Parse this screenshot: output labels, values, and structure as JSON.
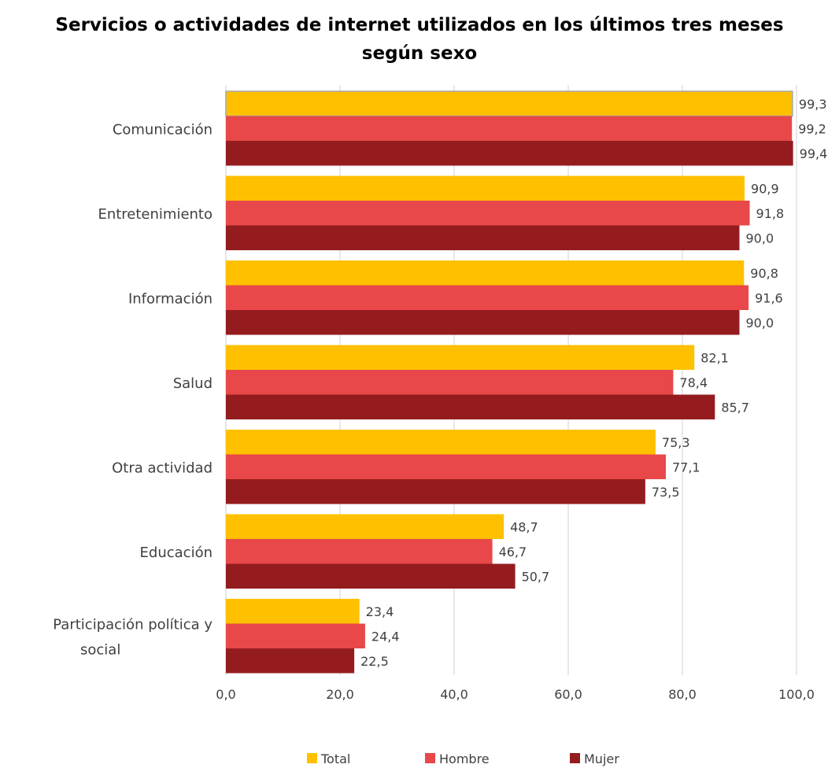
{
  "chart_data": {
    "type": "bar",
    "orientation": "horizontal",
    "title_lines": [
      "Servicios o actividades de internet utilizados en los últimos tres meses",
      "según sexo"
    ],
    "categories": [
      [
        "Comunicación"
      ],
      [
        "Entretenimiento"
      ],
      [
        "Información"
      ],
      [
        "Salud"
      ],
      [
        "Otra actividad"
      ],
      [
        "Educación"
      ],
      [
        "Participación política y",
        "social"
      ]
    ],
    "series": [
      {
        "name": "Total",
        "color": "#FFC000",
        "values": [
          99.3,
          90.9,
          90.8,
          82.1,
          75.3,
          48.7,
          23.4
        ],
        "labels": [
          "99,3",
          "90,9",
          "90,8",
          "82,1",
          "75,3",
          "48,7",
          "23,4"
        ]
      },
      {
        "name": "Hombre",
        "color": "#E84849",
        "values": [
          99.2,
          91.8,
          91.6,
          78.4,
          77.1,
          46.7,
          24.4
        ],
        "labels": [
          "99,2",
          "91,8",
          "91,6",
          "78,4",
          "77,1",
          "46,7",
          "24,4"
        ]
      },
      {
        "name": "Mujer",
        "color": "#941C1F",
        "values": [
          99.4,
          90.0,
          90.0,
          85.7,
          73.5,
          50.7,
          22.5
        ],
        "labels": [
          "99,4",
          "90,0",
          "90,0",
          "85,7",
          "73,5",
          "50,7",
          "22,5"
        ]
      }
    ],
    "xlim": [
      0,
      100
    ],
    "xticks": [
      0,
      20,
      40,
      60,
      80,
      100
    ],
    "xtick_labels": [
      "0,0",
      "20,0",
      "40,0",
      "60,0",
      "80,0",
      "100,0"
    ],
    "grid": "vertical",
    "legend_position": "bottom",
    "gridline_color": "#D9D9D9"
  }
}
